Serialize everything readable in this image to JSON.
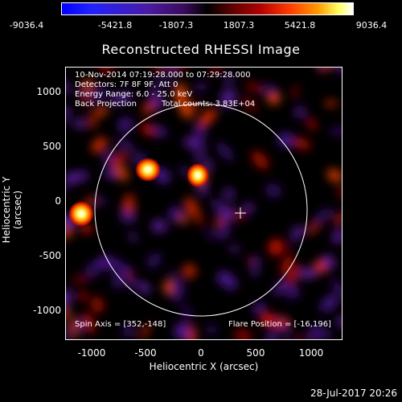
{
  "colorbar": {
    "labels": [
      "-9036.4",
      "-5421.8",
      "-1807.3",
      "1807.3",
      "5421.8",
      "9036.4"
    ]
  },
  "title": "Reconstructed RHESSI Image",
  "info": {
    "time_range": "10-Nov-2014 07:19:28.000 to 07:29:28.000",
    "detectors": "Detectors: 7F 8F 9F, Att 0",
    "energy": "Energy Range: 6.0 - 25.0 keV",
    "method": "Back Projection",
    "counts": "Total counts: 3.83E+04",
    "spin_axis": "Spin Axis = [352,-148]",
    "flare_position": "Flare Position = [-16,196]"
  },
  "axes": {
    "xlabel": "Heliocentric X (arcsec)",
    "ylabel": "Heliocentric Y (arcsec)",
    "xticks": [
      "-1000",
      "-500",
      "0",
      "500",
      "1000"
    ],
    "yticks": [
      "1000",
      "500",
      "0",
      "-500",
      "-1000"
    ]
  },
  "footer": "28-Jul-2017 20:26",
  "colors": {
    "background": "#000000",
    "axes": "#ffffff"
  }
}
